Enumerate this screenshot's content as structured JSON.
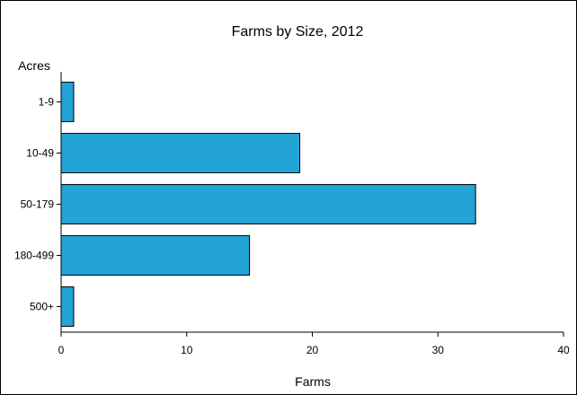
{
  "chart_data": {
    "type": "bar",
    "orientation": "horizontal",
    "title": "Farms by Size, 2012",
    "ylabel": "Acres",
    "xlabel": "Farms",
    "categories": [
      "1-9",
      "10-49",
      "50-179",
      "180-499",
      "500+"
    ],
    "values": [
      1,
      19,
      33,
      15,
      1
    ],
    "xlim": [
      0,
      40
    ],
    "xticks": [
      0,
      10,
      20,
      30,
      40
    ],
    "grid": false,
    "bar_color": "#22a4d6"
  }
}
